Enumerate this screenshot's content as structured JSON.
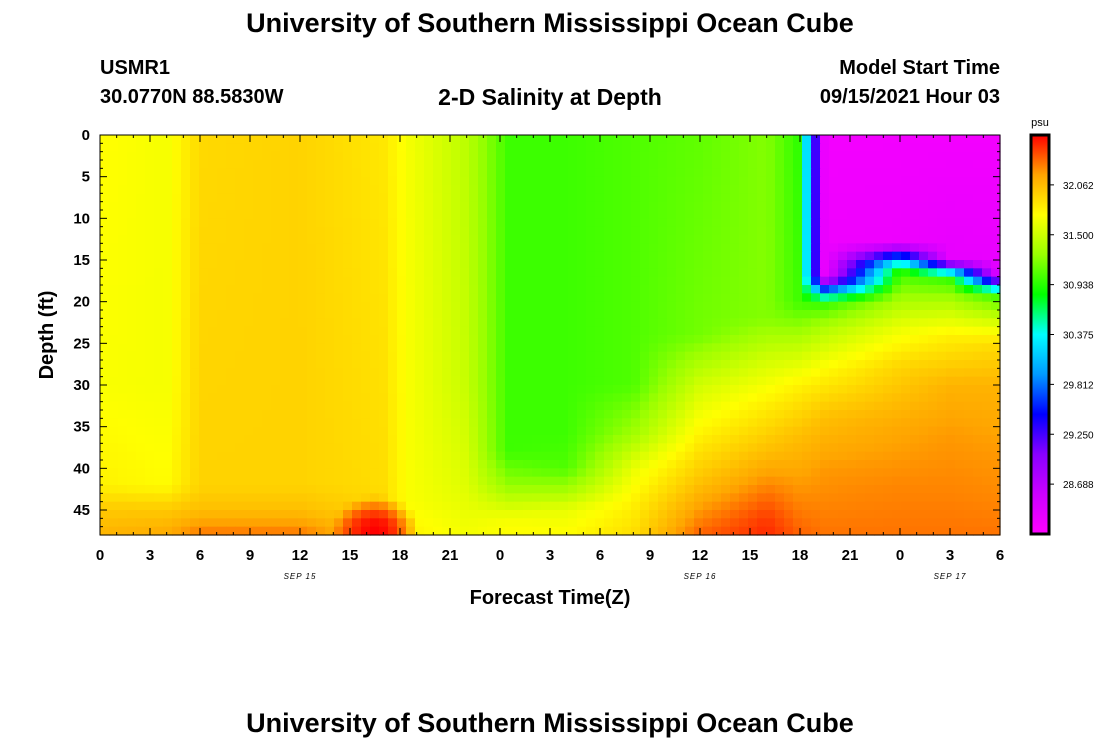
{
  "header": {
    "title": "University of Southern Mississippi Ocean Cube",
    "station_id": "USMR1",
    "station_coords": "30.0770N  88.5830W",
    "plot_title": "2-D Salinity at Depth",
    "model_start_label": "Model Start Time",
    "model_start_value": "09/15/2021 Hour 03"
  },
  "footer": {
    "title": "University of Southern Mississippi Ocean Cube"
  },
  "chart_data": {
    "type": "heatmap",
    "title": "2-D Salinity at Depth",
    "xlabel": "Forecast Time(Z)",
    "ylabel": "Depth (ft)",
    "x_tick_labels": [
      "0",
      "3",
      "6",
      "9",
      "12",
      "15",
      "18",
      "21",
      "0",
      "3",
      "6",
      "9",
      "12",
      "15",
      "18",
      "21",
      "0",
      "3",
      "6"
    ],
    "x_date_labels": [
      {
        "label": "SEP 15",
        "tick_index": 4
      },
      {
        "label": "SEP 16",
        "tick_index": 12
      },
      {
        "label": "SEP 17",
        "tick_index": 17
      }
    ],
    "x_range_hours": [
      0,
      54
    ],
    "y_tick_labels": [
      "0",
      "5",
      "10",
      "15",
      "20",
      "25",
      "30",
      "35",
      "40",
      "45"
    ],
    "ylim": [
      48,
      0
    ],
    "colorbar": {
      "unit_label": "psu",
      "tick_labels": [
        "32.062",
        "31.500",
        "30.938",
        "30.375",
        "29.812",
        "29.250",
        "28.688"
      ],
      "range": [
        28.2,
        32.5
      ],
      "colors": [
        "#ff00ff",
        "#cc00ff",
        "#8800ff",
        "#0000ff",
        "#0099ff",
        "#00ffff",
        "#00ff00",
        "#99ff00",
        "#ffff00",
        "#ffa500",
        "#ff0000"
      ]
    },
    "grid": false,
    "series": [
      {
        "x": 0,
        "depth_values": [
          {
            "d": 0,
            "v": 31.65
          },
          {
            "d": 30,
            "v": 31.62
          },
          {
            "d": 42,
            "v": 31.7
          },
          {
            "d": 45,
            "v": 31.9
          },
          {
            "d": 48,
            "v": 32.0
          }
        ]
      },
      {
        "x": 4,
        "depth_values": [
          {
            "d": 0,
            "v": 31.6
          },
          {
            "d": 30,
            "v": 31.6
          },
          {
            "d": 42,
            "v": 31.65
          },
          {
            "d": 45,
            "v": 31.9
          },
          {
            "d": 48,
            "v": 32.05
          }
        ]
      },
      {
        "x": 6,
        "depth_values": [
          {
            "d": 0,
            "v": 31.82
          },
          {
            "d": 42,
            "v": 31.85
          },
          {
            "d": 45,
            "v": 31.95
          },
          {
            "d": 48,
            "v": 32.2
          }
        ]
      },
      {
        "x": 12,
        "depth_values": [
          {
            "d": 0,
            "v": 31.85
          },
          {
            "d": 42,
            "v": 31.85
          },
          {
            "d": 45,
            "v": 31.95
          },
          {
            "d": 48,
            "v": 32.2
          }
        ]
      },
      {
        "x": 17,
        "depth_values": [
          {
            "d": 0,
            "v": 31.75
          },
          {
            "d": 42,
            "v": 31.8
          },
          {
            "d": 46,
            "v": 31.85
          },
          {
            "d": 48,
            "v": 31.9
          }
        ]
      },
      {
        "x": 18.5,
        "depth_values": [
          {
            "d": 0,
            "v": 31.6
          },
          {
            "d": 44,
            "v": 31.62
          },
          {
            "d": 48,
            "v": 31.7
          }
        ]
      },
      {
        "x": 22,
        "depth_values": [
          {
            "d": 0,
            "v": 31.35
          },
          {
            "d": 30,
            "v": 31.4
          },
          {
            "d": 42,
            "v": 31.5
          },
          {
            "d": 48,
            "v": 31.6
          }
        ]
      },
      {
        "x": 24.5,
        "depth_values": [
          {
            "d": 0,
            "v": 30.95
          },
          {
            "d": 38,
            "v": 30.95
          },
          {
            "d": 42,
            "v": 31.2
          },
          {
            "d": 44,
            "v": 31.4
          },
          {
            "d": 46,
            "v": 31.6
          },
          {
            "d": 48,
            "v": 31.65
          }
        ]
      },
      {
        "x": 28,
        "depth_values": [
          {
            "d": 0,
            "v": 30.95
          },
          {
            "d": 36,
            "v": 30.95
          },
          {
            "d": 40,
            "v": 31.0
          },
          {
            "d": 43,
            "v": 31.3
          },
          {
            "d": 45,
            "v": 31.55
          },
          {
            "d": 48,
            "v": 31.65
          }
        ]
      },
      {
        "x": 32,
        "depth_values": [
          {
            "d": 0,
            "v": 31.0
          },
          {
            "d": 30,
            "v": 31.0
          },
          {
            "d": 36,
            "v": 31.25
          },
          {
            "d": 40,
            "v": 31.55
          },
          {
            "d": 44,
            "v": 31.7
          },
          {
            "d": 48,
            "v": 31.8
          }
        ]
      },
      {
        "x": 36,
        "depth_values": [
          {
            "d": 0,
            "v": 31.05
          },
          {
            "d": 24,
            "v": 31.1
          },
          {
            "d": 30,
            "v": 31.45
          },
          {
            "d": 36,
            "v": 31.7
          },
          {
            "d": 42,
            "v": 31.95
          },
          {
            "d": 46,
            "v": 32.15
          },
          {
            "d": 48,
            "v": 32.25
          }
        ]
      },
      {
        "x": 40,
        "depth_values": [
          {
            "d": 0,
            "v": 31.15
          },
          {
            "d": 22,
            "v": 31.15
          },
          {
            "d": 27,
            "v": 31.45
          },
          {
            "d": 32,
            "v": 31.7
          },
          {
            "d": 38,
            "v": 31.95
          },
          {
            "d": 43,
            "v": 32.2
          },
          {
            "d": 46,
            "v": 32.35
          },
          {
            "d": 48,
            "v": 32.4
          }
        ]
      },
      {
        "x": 42,
        "depth_values": [
          {
            "d": 0,
            "v": 30.9
          },
          {
            "d": 20,
            "v": 30.95
          },
          {
            "d": 25,
            "v": 31.35
          },
          {
            "d": 30,
            "v": 31.7
          },
          {
            "d": 36,
            "v": 31.95
          },
          {
            "d": 42,
            "v": 32.1
          },
          {
            "d": 46,
            "v": 32.2
          },
          {
            "d": 48,
            "v": 32.25
          }
        ]
      },
      {
        "x": 43.5,
        "depth_values": [
          {
            "d": 0,
            "v": 28.3
          },
          {
            "d": 17,
            "v": 28.35
          },
          {
            "d": 20,
            "v": 30.9
          },
          {
            "d": 23,
            "v": 31.3
          },
          {
            "d": 28,
            "v": 31.65
          },
          {
            "d": 34,
            "v": 31.95
          },
          {
            "d": 40,
            "v": 32.1
          },
          {
            "d": 48,
            "v": 32.2
          }
        ]
      },
      {
        "x": 48,
        "depth_values": [
          {
            "d": 0,
            "v": 28.3
          },
          {
            "d": 13,
            "v": 28.35
          },
          {
            "d": 16,
            "v": 30.9
          },
          {
            "d": 19,
            "v": 31.2
          },
          {
            "d": 23,
            "v": 31.55
          },
          {
            "d": 28,
            "v": 31.85
          },
          {
            "d": 35,
            "v": 32.05
          },
          {
            "d": 42,
            "v": 32.15
          },
          {
            "d": 48,
            "v": 32.2
          }
        ]
      },
      {
        "x": 51,
        "depth_values": [
          {
            "d": 0,
            "v": 28.3
          },
          {
            "d": 15,
            "v": 28.4
          },
          {
            "d": 17,
            "v": 30.9
          },
          {
            "d": 20,
            "v": 31.3
          },
          {
            "d": 24,
            "v": 31.7
          },
          {
            "d": 30,
            "v": 32.0
          },
          {
            "d": 36,
            "v": 32.1
          },
          {
            "d": 42,
            "v": 32.15
          },
          {
            "d": 48,
            "v": 32.2
          }
        ]
      },
      {
        "x": 54,
        "depth_values": [
          {
            "d": 0,
            "v": 28.3
          },
          {
            "d": 17,
            "v": 28.4
          },
          {
            "d": 19,
            "v": 30.9
          },
          {
            "d": 22,
            "v": 31.4
          },
          {
            "d": 25,
            "v": 31.8
          },
          {
            "d": 30,
            "v": 32.0
          },
          {
            "d": 38,
            "v": 32.1
          },
          {
            "d": 44,
            "v": 32.15
          },
          {
            "d": 48,
            "v": 32.2
          }
        ]
      }
    ],
    "hotspot": {
      "x": 16.5,
      "depth": 47.5,
      "x_radius": 2.6,
      "depth_radius": 4.2,
      "peak": 32.5
    }
  }
}
